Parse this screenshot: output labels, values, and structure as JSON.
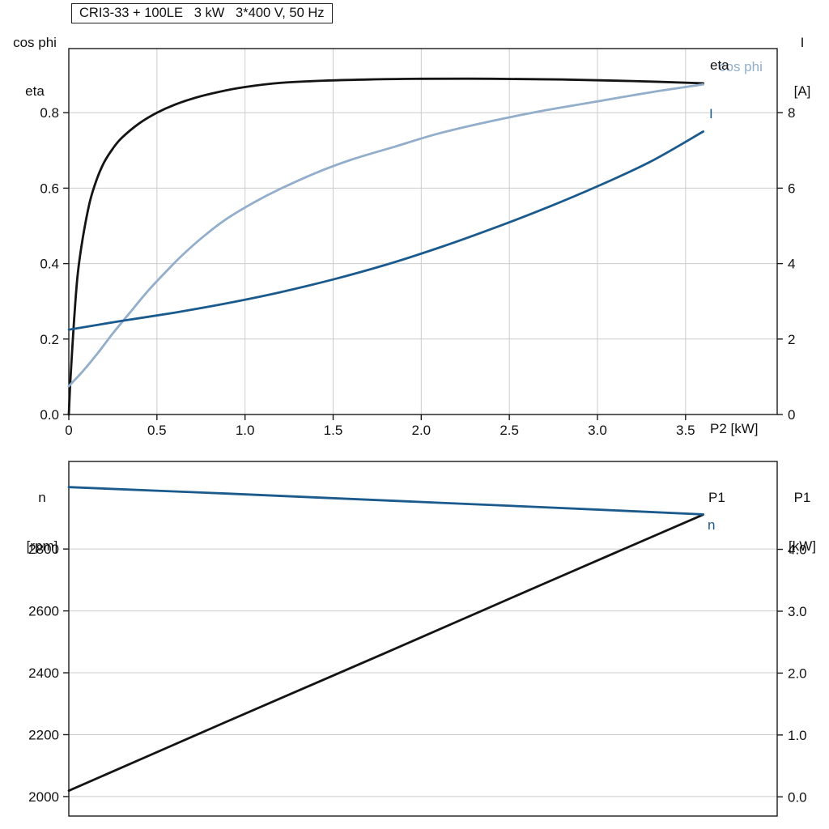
{
  "header": {
    "title": "CRI3-33 + 100LE   3 kW   3*400 V, 50 Hz"
  },
  "colors": {
    "curve_black": "#141414",
    "curve_dark_blue": "#1b5a8d",
    "curve_light_blue": "#92aecb",
    "grid": "#cccccc",
    "frame": "#1a1a1a",
    "background": "#ffffff"
  },
  "top_chart": {
    "ylabel_left_line1": "cos phi",
    "ylabel_left_line2": "eta",
    "ylabel_right_line1": "I",
    "ylabel_right_line2": "[A]",
    "xlabel": "P2 [kW]",
    "curve_labels": {
      "eta": "eta",
      "cos_phi": "cos phi",
      "current": "I"
    }
  },
  "bottom_chart": {
    "ylabel_left_line1": "n",
    "ylabel_left_line2": "[rpm]",
    "ylabel_right_line1": "P1",
    "ylabel_right_line2": "[kW]",
    "curve_labels": {
      "p1": "P1",
      "n": "n"
    }
  },
  "chart_data": [
    {
      "type": "line",
      "title": "CRI3-33 + 100LE 3 kW 3*400 V, 50 Hz",
      "xlabel": "P2 [kW]",
      "ylabel_left": "cos phi / eta",
      "ylabel_right": "I [A]",
      "grid": true,
      "legend_position": "right-inline",
      "xlim": [
        0,
        4.02
      ],
      "ylim_left": [
        0,
        0.97
      ],
      "ylim_right": [
        0,
        9.7
      ],
      "xticks": [
        0,
        0.5,
        1.0,
        1.5,
        2.0,
        2.5,
        3.0,
        3.5
      ],
      "xtick_labels": [
        "0",
        "0.5",
        "1.0",
        "1.5",
        "2.0",
        "2.5",
        "3.0",
        "3.5"
      ],
      "yticks_left": [
        0.0,
        0.2,
        0.4,
        0.6,
        0.8
      ],
      "ytick_labels_left": [
        "0.0",
        "0.2",
        "0.4",
        "0.6",
        "0.8"
      ],
      "yticks_right": [
        0,
        2,
        4,
        6,
        8
      ],
      "ytick_labels_right": [
        "0",
        "2",
        "4",
        "6",
        "8"
      ],
      "series": [
        {
          "name": "eta",
          "axis": "left",
          "color": "curve_black",
          "x": [
            0,
            0.01,
            0.03,
            0.05,
            0.08,
            0.12,
            0.16,
            0.2,
            0.25,
            0.3,
            0.4,
            0.5,
            0.6,
            0.72,
            0.86,
            1.0,
            1.2,
            1.45,
            1.7,
            2.0,
            2.4,
            2.8,
            3.2,
            3.6
          ],
          "y": [
            0,
            0.1,
            0.25,
            0.37,
            0.47,
            0.565,
            0.625,
            0.668,
            0.705,
            0.733,
            0.772,
            0.8,
            0.821,
            0.84,
            0.856,
            0.868,
            0.879,
            0.885,
            0.888,
            0.89,
            0.89,
            0.888,
            0.884,
            0.878
          ]
        },
        {
          "name": "cos phi",
          "axis": "left",
          "color": "curve_light_blue",
          "x": [
            0,
            0.08,
            0.16,
            0.25,
            0.35,
            0.45,
            0.55,
            0.65,
            0.78,
            0.9,
            1.05,
            1.2,
            1.4,
            1.6,
            1.85,
            2.1,
            2.4,
            2.7,
            3.0,
            3.3,
            3.6
          ],
          "y": [
            0.075,
            0.115,
            0.16,
            0.215,
            0.272,
            0.328,
            0.378,
            0.425,
            0.478,
            0.52,
            0.562,
            0.598,
            0.64,
            0.675,
            0.71,
            0.745,
            0.778,
            0.806,
            0.83,
            0.854,
            0.875
          ]
        },
        {
          "name": "I",
          "axis": "right",
          "color": "curve_dark_blue",
          "x": [
            0,
            0.3,
            0.6,
            0.9,
            1.2,
            1.5,
            1.8,
            2.1,
            2.4,
            2.7,
            3.0,
            3.3,
            3.6
          ],
          "y": [
            2.25,
            2.48,
            2.7,
            2.95,
            3.24,
            3.58,
            3.97,
            4.42,
            4.92,
            5.46,
            6.05,
            6.7,
            7.5
          ]
        }
      ]
    },
    {
      "type": "line",
      "title": "",
      "xlabel": "",
      "ylabel_left": "n [rpm]",
      "ylabel_right": "P1 [kW]",
      "grid": true,
      "xlim": [
        0,
        4.02
      ],
      "ylim_left": [
        1937,
        3083
      ],
      "ylim_right": [
        -0.31,
        5.42
      ],
      "xticks": [],
      "xtick_labels": [],
      "yticks_left": [
        2000,
        2200,
        2400,
        2600,
        2800
      ],
      "ytick_labels_left": [
        "2000",
        "2200",
        "2400",
        "2600",
        "2800"
      ],
      "yticks_right": [
        0,
        1,
        2,
        3,
        4
      ],
      "ytick_labels_right": [
        "0.0",
        "1.0",
        "2.0",
        "3.0",
        "4.0"
      ],
      "series": [
        {
          "name": "P1",
          "axis": "right",
          "color": "curve_black",
          "x": [
            0,
            0.9,
            1.8,
            2.7,
            3.6
          ],
          "y": [
            0.1,
            1.22,
            2.33,
            3.45,
            4.56
          ]
        },
        {
          "name": "n",
          "axis": "left",
          "color": "curve_dark_blue",
          "x": [
            0,
            0.9,
            1.8,
            2.7,
            3.6
          ],
          "y": [
            3000,
            2979,
            2957,
            2935,
            2912
          ]
        }
      ]
    }
  ]
}
